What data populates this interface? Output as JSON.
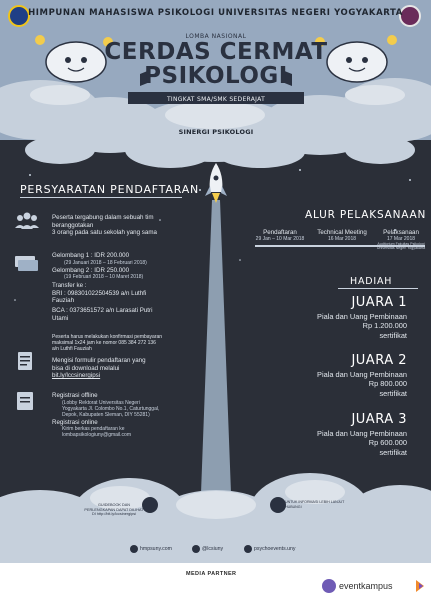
{
  "colors": {
    "background": "#2b2f38",
    "cloud": "#c6d0dc",
    "accent": "#9fb1c6",
    "text": "#e3e8ee"
  },
  "header": {
    "organization": "HIMPUNAN MAHASISWA PSIKOLOGI UNIVERSITAS NEGERI YOGYAKARTA",
    "competition_label": "LOMBA NASIONAL",
    "title_line1": "CERDAS CERMAT",
    "title_line2": "PSIKOLOGI",
    "level": "TINGKAT SMA/SMK SEDERAJAT",
    "theme": "SINERGI PSIKOLOGI"
  },
  "requirements": {
    "heading": "PERSYARATAN PENDAFTARAN",
    "eligibility": [
      "Peserta tergabung dalam sebuah tim",
      "beranggotakan",
      "3 orang pada satu sekolah yang sama"
    ],
    "wave1": "Gelombang 1 : IDR 200.000",
    "wave1_dates": "(29 Januari 2018 – 18 Februari 2018)",
    "wave2": "Gelombang 2 : IDR 250.000",
    "wave2_dates": "(19 Februari 2018 – 10 Maret 2018)",
    "transfer_label": "Transfer ke :",
    "bri": [
      "BRI : 098301022504539 a/n Luthfi",
      "Fauziah"
    ],
    "bca": [
      "BCA : 0373651572 a/n Larasati Putri",
      "Utami"
    ],
    "confirm": [
      "Peserta harus melakukan konfirmasi pembayaran",
      "maksimal 1x24 jam ke nomor 085 384 272 136",
      "a/n Luthfi Fauziah"
    ],
    "form": [
      "Mengisi formulir pendaftaran yang",
      "bisa di download melalui",
      "bit.ly/lccsinergipsi"
    ],
    "offline_label": "Registrasi offline",
    "offline_address": [
      "(Lobby Rektorat Universitas Negeri",
      "Yogyakarta Jl. Colombo No.1, Caturtunggal,",
      "Depok, Kabupaten Sleman, DIY 55281)"
    ],
    "online_label": "Registrasi online",
    "online_detail": [
      "Kirim berkas pendaftaran ke",
      "lombapsikologiuny@gmail.com"
    ]
  },
  "timeline": {
    "heading": "ALUR PELAKSANAAN",
    "items": [
      {
        "label": "Pendaftaran",
        "date": "29 Jan – 10 Mar 2018",
        "venue": ""
      },
      {
        "label": "Technical Meeting",
        "date": "16 Mar 2018",
        "venue": ""
      },
      {
        "label": "Pelaksanaan",
        "date": "17 Mar 2018",
        "venue": "Auditorium Fakultas Psikologi\nUniversitas Negeri Yogyakarta"
      }
    ]
  },
  "prizes": {
    "heading": "HADIAH",
    "items": [
      {
        "rank": "JUARA 1",
        "line1": "Piala dan Uang Pembinaan",
        "amount": "Rp 1.200.000",
        "line3": "sertifikat"
      },
      {
        "rank": "JUARA 2",
        "line1": "Piala dan Uang Pembinaan",
        "amount": "Rp 800.000",
        "line3": "sertifikat"
      },
      {
        "rank": "JUARA 3",
        "line1": "Piala dan Uang Pembinaan",
        "amount": "Rp 600.000",
        "line3": "sertifikat"
      }
    ]
  },
  "footer": {
    "contact_left": "GUIDEBOOK DAN PERLENGKAPAN DAPAT DILIHAT DI http://bit.ly/lccsinergipsi",
    "contact_right": "UNTUK INFORMASI LEBIH LANJUT HUBUNGI",
    "social": {
      "website": "hmpsuny.com",
      "twitter": "@lcsiuny",
      "instagram": "psychoevents.uny"
    },
    "media_partner_label": "MEDIA PARTNER",
    "partner": "eventkampus"
  }
}
